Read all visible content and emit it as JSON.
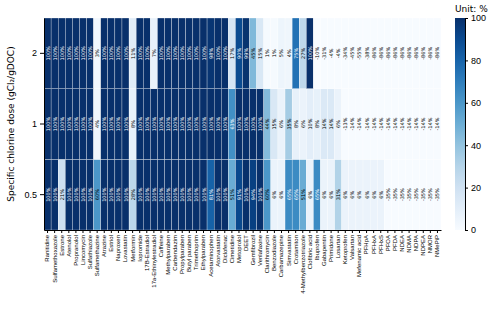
{
  "chart_data": {
    "type": "heatmap",
    "categories": [
      "Ranitidine",
      "Sulfamethoxazole",
      "Estrone",
      "Atenolol",
      "Propranolol",
      "Lincomycin",
      "Sulfathiazole",
      "Sulfamethazine",
      "Atrazine",
      "Estriol",
      "Naproxen",
      "Lovastatin",
      "Metformin",
      "Iopromide",
      "17B-Estradiol",
      "17a-Ethinylestradiol",
      "Caffeine",
      "Methylparaben",
      "Carbendazim",
      "Propylparaben",
      "Butyl paraben",
      "Trimethoprim",
      "Ethylparaben",
      "Acetaminophen",
      "Atorvastatin",
      "Diclofenac",
      "Cimetidine",
      "Metoprolol",
      "DEET",
      "Gemfibrozil",
      "Venlafaxine",
      "Clarithromycin",
      "Benzodiazole",
      "Carbamazepine",
      "Simvastatin",
      "Crotamiton",
      "4-Methylbenzotriazole",
      "Clofibric acid",
      "Ibuprofen",
      "Gabapentin",
      "Primidone",
      "Losartan",
      "Ketoprofen",
      "Valsartan",
      "Mefenamic acid",
      "PFHpA",
      "PFHxA",
      "PFHxS",
      "PFOA",
      "PFDA",
      "NDEA",
      "NDMA",
      "NDPA",
      "NDPEA",
      "NMOR",
      "NMePiP"
    ],
    "y_categories": [
      0.5,
      1,
      2
    ],
    "ylabel": "Specific chlorine dose (gCl₂/gDOC)",
    "values": [
      [
        100,
        100,
        21,
        100,
        100,
        100,
        100,
        60,
        100,
        100,
        100,
        100,
        28,
        100,
        100,
        100,
        100,
        100,
        100,
        100,
        100,
        100,
        100,
        81,
        100,
        100,
        51,
        91,
        100,
        94,
        100,
        60,
        6,
        6,
        65,
        65,
        51,
        6,
        65,
        6,
        6,
        31,
        6,
        6,
        6,
        6,
        6,
        6,
        -35,
        -35,
        -35,
        -35,
        -35,
        -35,
        -35,
        -35
      ],
      [
        100,
        100,
        100,
        100,
        100,
        100,
        100,
        4,
        100,
        100,
        100,
        100,
        8,
        100,
        100,
        100,
        100,
        100,
        100,
        100,
        100,
        100,
        100,
        100,
        100,
        100,
        63,
        100,
        100,
        100,
        100,
        44,
        15,
        6,
        35,
        8,
        6,
        10,
        8,
        14,
        14,
        6,
        -13,
        -14,
        -14,
        -14,
        -14,
        -14,
        -14,
        -14,
        -14,
        -14,
        -14,
        -14,
        -14,
        -14
      ],
      [
        100,
        100,
        100,
        100,
        100,
        100,
        100,
        3,
        100,
        100,
        100,
        100,
        11,
        100,
        100,
        7,
        100,
        100,
        100,
        100,
        100,
        100,
        100,
        98,
        100,
        100,
        17,
        90,
        99,
        45,
        15,
        1,
        1,
        5,
        4,
        75,
        27,
        100,
        -10,
        -31,
        -4,
        -4,
        -34,
        -45,
        -55,
        -38,
        -86,
        -86,
        -86,
        -86,
        -86,
        -86,
        -86,
        -86,
        -86,
        -86
      ]
    ],
    "value_labels": [
      [
        "100%",
        "100%",
        "21%",
        "100%",
        "100%",
        "100%",
        "100%",
        "60%",
        "100%",
        "100%",
        "100%",
        "100%",
        "28%",
        "100%",
        "100%",
        "100%",
        "100%",
        "100%",
        "100%",
        "100%",
        "100%",
        "100%",
        "100%",
        "81%",
        "100%",
        "100%",
        "51%",
        "91%",
        "100%",
        "94%",
        "100%",
        "60%",
        "6%",
        "6%",
        "65%",
        "65%",
        "51%",
        "6%",
        "65%",
        "6%",
        "6%",
        "31%",
        "6%",
        "6%",
        "6%",
        "6%",
        "6%",
        "6%",
        "-35%",
        "-35%",
        "-35%",
        "-35%",
        "-35%",
        "-35%",
        "-35%",
        "-35%"
      ],
      [
        "100%",
        "100%",
        "100%",
        "100%",
        "100%",
        "100%",
        "100%",
        "4%",
        "100%",
        "100%",
        "100%",
        "100%",
        "8%",
        "100%",
        "100%",
        "100%",
        "100%",
        "100%",
        "100%",
        "100%",
        "100%",
        "100%",
        "100%",
        "100%",
        "100%",
        "100%",
        "63%",
        "100%",
        "100%",
        "100%",
        "100%",
        "44%",
        "15%",
        "6%",
        "35%",
        "8%",
        "6%",
        "10%",
        "8%",
        "14%",
        "14%",
        "6%",
        "-13%",
        "-14%",
        "-14%",
        "-14%",
        "-14%",
        "-14%",
        "-14%",
        "-14%",
        "-14%",
        "-14%",
        "-14%",
        "-14%",
        "-14%",
        "-14%"
      ],
      [
        "100%",
        "100%",
        "100%",
        "100%",
        "100%",
        "100%",
        "100%",
        "3%",
        "100%",
        "100%",
        "100%",
        "100%",
        "11%",
        "100%",
        "100%",
        "7%",
        "100%",
        "100%",
        "100%",
        "100%",
        "100%",
        "100%",
        "100%",
        "98%",
        "100%",
        "100%",
        "17%",
        "90%",
        "99%",
        "45%",
        "15%",
        "1%",
        "1%",
        "5%",
        "4%",
        "75%",
        "27%",
        "100%",
        "-10%",
        "-31%",
        "-4%",
        "-4%",
        "-34%",
        "-45%",
        "-55%",
        "-38%",
        "-86%",
        "-86%",
        "-86%",
        "-86%",
        "-86%",
        "-86%",
        "-86%",
        "-86%",
        "-86%",
        "-86%"
      ]
    ],
    "data_labels": true,
    "colorbar_label": "Unit: %",
    "colorbar_range": [
      0,
      100
    ],
    "colorbar_ticks": [
      0,
      20,
      40,
      60,
      80,
      100
    ]
  }
}
